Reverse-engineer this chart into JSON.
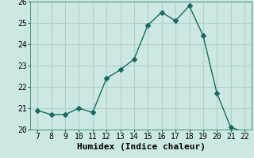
{
  "title": "",
  "xlabel": "Humidex (Indice chaleur)",
  "x": [
    7,
    8,
    9,
    10,
    11,
    12,
    13,
    14,
    15,
    16,
    17,
    18,
    19,
    20,
    21,
    22
  ],
  "y": [
    20.9,
    20.7,
    20.7,
    21.0,
    20.8,
    22.4,
    22.8,
    23.3,
    24.9,
    25.5,
    25.1,
    25.8,
    24.4,
    21.7,
    20.1,
    19.9
  ],
  "line_color": "#1a6b5a",
  "marker": "D",
  "marker_size": 3,
  "bg_color": "#cce8e4",
  "grid_color": "#b0d0cc",
  "ylim": [
    20,
    26
  ],
  "yticks": [
    20,
    21,
    22,
    23,
    24,
    25,
    26
  ],
  "xticks": [
    7,
    8,
    9,
    10,
    11,
    12,
    13,
    14,
    15,
    16,
    17,
    18,
    19,
    20,
    21,
    22
  ],
  "axis_fontsize": 8,
  "tick_fontsize": 7
}
